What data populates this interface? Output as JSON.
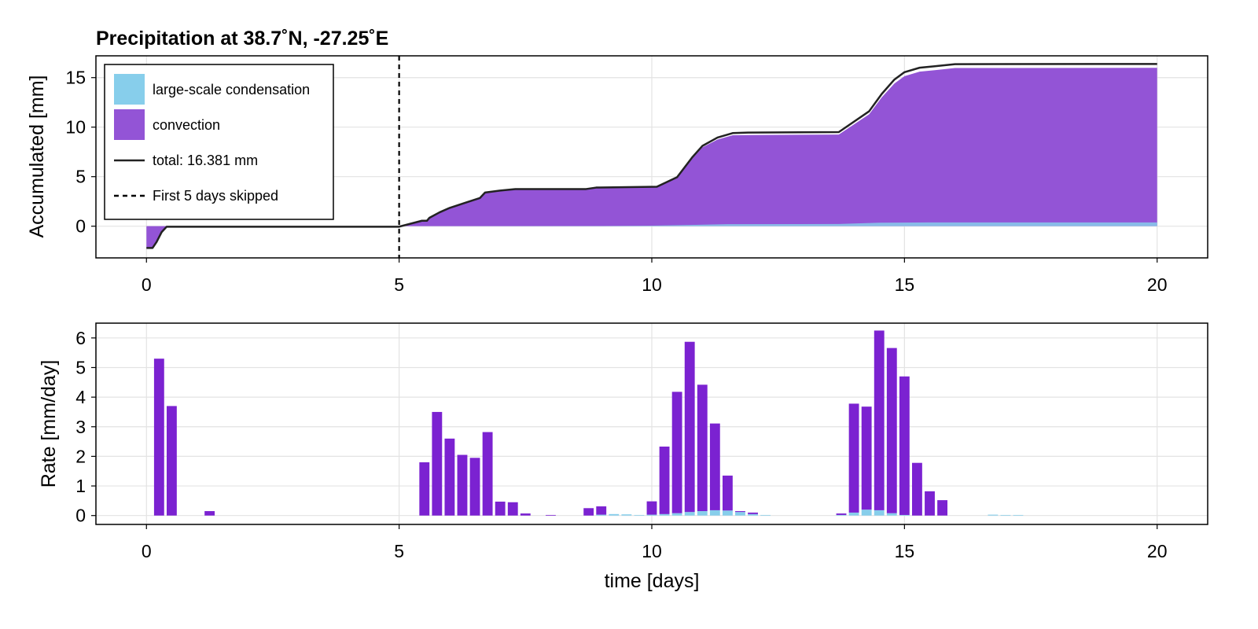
{
  "chart_data": [
    {
      "type": "area",
      "title": "Precipitation at 38.7˚N, -27.25˚E",
      "xlabel": "",
      "ylabel": "Accumulated [mm]",
      "xlim": [
        -1,
        21
      ],
      "ylim": [
        -3.2,
        17.2
      ],
      "xticks": [
        0,
        5,
        10,
        15,
        20
      ],
      "yticks": [
        0,
        5,
        10,
        15
      ],
      "grid": true,
      "legend_position": "top-left",
      "series": [
        {
          "name": "large-scale condensation",
          "color": "#87ceeb",
          "x": [
            0,
            0.5,
            5.0,
            9.0,
            10.0,
            11.5,
            13.7,
            14.5,
            15.5,
            20.0
          ],
          "y": [
            0,
            0,
            0,
            0.02,
            0.05,
            0.2,
            0.22,
            0.35,
            0.38,
            0.38
          ]
        },
        {
          "name": "convection",
          "color": "#9354d6",
          "x": [
            0,
            0.12,
            0.2,
            0.3,
            0.4,
            1.0,
            5.0,
            5.45,
            5.55,
            5.6,
            5.8,
            6.0,
            6.3,
            6.6,
            6.7,
            7.0,
            7.3,
            8.7,
            8.9,
            10.1,
            10.5,
            10.8,
            11.0,
            11.3,
            11.6,
            11.9,
            13.7,
            14.3,
            14.55,
            14.8,
            15.0,
            15.3,
            15.6,
            16.0,
            20.0
          ],
          "y": [
            -2.2,
            -2.2,
            -1.6,
            -0.6,
            -0.05,
            -0.05,
            -0.05,
            0.55,
            0.55,
            0.85,
            1.4,
            1.85,
            2.35,
            2.85,
            3.4,
            3.6,
            3.75,
            3.75,
            3.9,
            3.93,
            4.85,
            6.8,
            7.95,
            8.75,
            9.18,
            9.2,
            9.25,
            11.3,
            13.0,
            14.4,
            15.15,
            15.6,
            15.75,
            15.97,
            15.99
          ]
        },
        {
          "name": "total: 16.381 mm",
          "type": "line",
          "color": "#222222",
          "x": [
            0,
            0.12,
            0.2,
            0.3,
            0.4,
            1.0,
            5.0,
            5.45,
            5.55,
            5.6,
            5.8,
            6.0,
            6.3,
            6.6,
            6.7,
            7.0,
            7.3,
            8.7,
            8.9,
            10.1,
            10.5,
            10.8,
            11.0,
            11.3,
            11.6,
            11.9,
            13.7,
            14.3,
            14.55,
            14.8,
            15.0,
            15.3,
            15.6,
            16.0,
            20.0
          ],
          "y": [
            -2.2,
            -2.2,
            -1.6,
            -0.6,
            -0.05,
            -0.05,
            -0.05,
            0.55,
            0.55,
            0.85,
            1.4,
            1.85,
            2.35,
            2.85,
            3.4,
            3.6,
            3.75,
            3.75,
            3.9,
            3.98,
            4.95,
            6.95,
            8.1,
            8.95,
            9.4,
            9.45,
            9.5,
            11.6,
            13.35,
            14.8,
            15.55,
            16.0,
            16.15,
            16.36,
            16.38
          ]
        }
      ],
      "vline": {
        "name": "First 5 days skipped",
        "x": 5,
        "style": "dashed",
        "color": "#000000"
      }
    },
    {
      "type": "bar",
      "xlabel": "time [days]",
      "ylabel": "Rate [mm/day]",
      "xlim": [
        -1,
        21
      ],
      "ylim": [
        -0.3,
        6.5
      ],
      "xticks": [
        0,
        5,
        10,
        15,
        20
      ],
      "yticks": [
        0,
        1,
        2,
        3,
        4,
        5,
        6
      ],
      "grid": true,
      "bar_width_days": 0.2,
      "stacked": true,
      "x": [
        0.25,
        0.5,
        1.25,
        5.5,
        5.75,
        6.0,
        6.25,
        6.5,
        6.75,
        7.0,
        7.25,
        7.5,
        8.0,
        8.75,
        9.0,
        9.25,
        9.5,
        9.75,
        10.0,
        10.25,
        10.5,
        10.75,
        11.0,
        11.25,
        11.5,
        11.75,
        12.0,
        12.25,
        13.75,
        14.0,
        14.25,
        14.5,
        14.75,
        15.0,
        15.25,
        15.5,
        15.75,
        16.75,
        17.0,
        17.25
      ],
      "series": [
        {
          "name": "large-scale condensation",
          "color": "#87ceeb",
          "values": [
            0,
            0,
            0,
            0,
            0,
            0,
            0,
            0,
            0,
            0,
            0,
            0,
            0,
            0,
            0.03,
            0.05,
            0.04,
            0.02,
            0.03,
            0.05,
            0.08,
            0.12,
            0.15,
            0.18,
            0.17,
            0.12,
            0.05,
            0.02,
            0.02,
            0.1,
            0.2,
            0.18,
            0.08,
            0.02,
            0,
            0,
            0,
            0.03,
            0.02,
            0.02
          ]
        },
        {
          "name": "convection",
          "color": "#7b22d1",
          "values": [
            5.3,
            3.7,
            0.15,
            1.8,
            3.5,
            2.6,
            2.05,
            1.95,
            2.82,
            0.47,
            0.45,
            0.07,
            0.02,
            0.25,
            0.28,
            0,
            0,
            0,
            0.45,
            2.28,
            4.1,
            5.75,
            4.27,
            2.93,
            1.18,
            0.03,
            0.05,
            0,
            0.05,
            3.68,
            3.48,
            6.07,
            5.58,
            4.68,
            1.78,
            0.82,
            0.52,
            0,
            0,
            0
          ]
        }
      ]
    }
  ]
}
